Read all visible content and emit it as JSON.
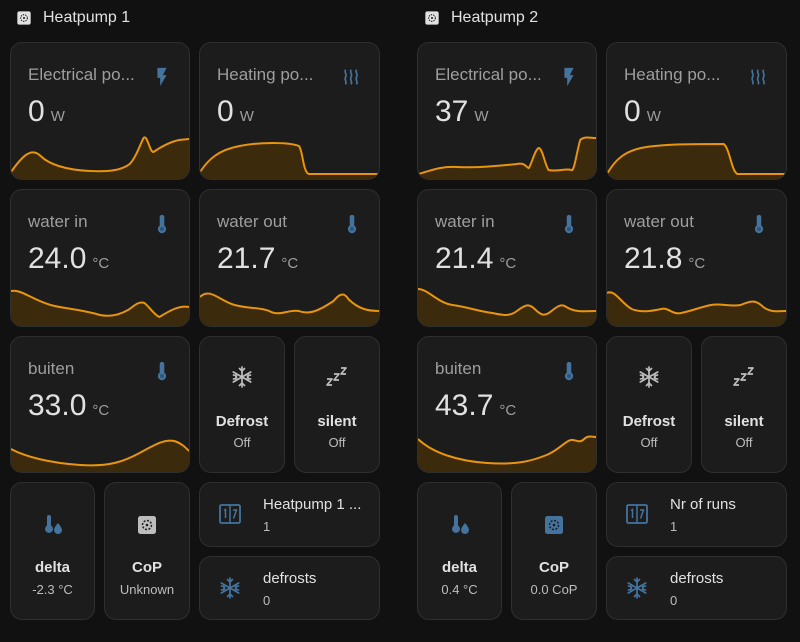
{
  "colors": {
    "accent": "#e8950d",
    "icon_blue": "#44739e",
    "background": "#111111",
    "card": "#1c1c1c"
  },
  "panels": [
    {
      "title": "Heatpump 1",
      "electrical": {
        "label": "Electrical po...",
        "value": "0",
        "unit": "W",
        "icon": "flash-icon"
      },
      "heating": {
        "label": "Heating po...",
        "value": "0",
        "unit": "W",
        "icon": "heat-wave-icon"
      },
      "water_in": {
        "label": "water in",
        "value": "24.0",
        "unit": "°C",
        "icon": "thermometer-icon"
      },
      "water_out": {
        "label": "water out",
        "value": "21.7",
        "unit": "°C",
        "icon": "thermometer-icon"
      },
      "buiten": {
        "label": "buiten",
        "value": "33.0",
        "unit": "°C",
        "icon": "thermometer-icon"
      },
      "defrost": {
        "label": "Defrost",
        "state": "Off",
        "icon": "snowflake-icon"
      },
      "silent": {
        "label": "silent",
        "state": "Off",
        "icon": "sleep-icon"
      },
      "delta": {
        "label": "delta",
        "state": "-2.3 °C",
        "icon": "thermometer-water-icon"
      },
      "cop": {
        "label": "CoP",
        "state": "Unknown",
        "icon": "heat-pump-icon"
      },
      "runs": {
        "label": "Heatpump 1 ...",
        "state": "1",
        "icon": "counter-icon"
      },
      "defrosts": {
        "label": "defrosts",
        "state": "0",
        "icon": "snowflake-icon"
      }
    },
    {
      "title": "Heatpump 2",
      "electrical": {
        "label": "Electrical po...",
        "value": "37",
        "unit": "W",
        "icon": "flash-icon"
      },
      "heating": {
        "label": "Heating po...",
        "value": "0",
        "unit": "W",
        "icon": "heat-wave-icon"
      },
      "water_in": {
        "label": "water in",
        "value": "21.4",
        "unit": "°C",
        "icon": "thermometer-icon"
      },
      "water_out": {
        "label": "water out",
        "value": "21.8",
        "unit": "°C",
        "icon": "thermometer-icon"
      },
      "buiten": {
        "label": "buiten",
        "value": "43.7",
        "unit": "°C",
        "icon": "thermometer-icon"
      },
      "defrost": {
        "label": "Defrost",
        "state": "Off",
        "icon": "snowflake-icon"
      },
      "silent": {
        "label": "silent",
        "state": "Off",
        "icon": "sleep-icon"
      },
      "delta": {
        "label": "delta",
        "state": "0.4 °C",
        "icon": "thermometer-water-icon"
      },
      "cop": {
        "label": "CoP",
        "state": "0.0 CoP",
        "icon": "heat-pump-icon"
      },
      "runs": {
        "label": "Nr of runs",
        "state": "1",
        "icon": "counter-icon"
      },
      "defrosts": {
        "label": "defrosts",
        "state": "0",
        "icon": "snowflake-icon"
      }
    }
  ]
}
